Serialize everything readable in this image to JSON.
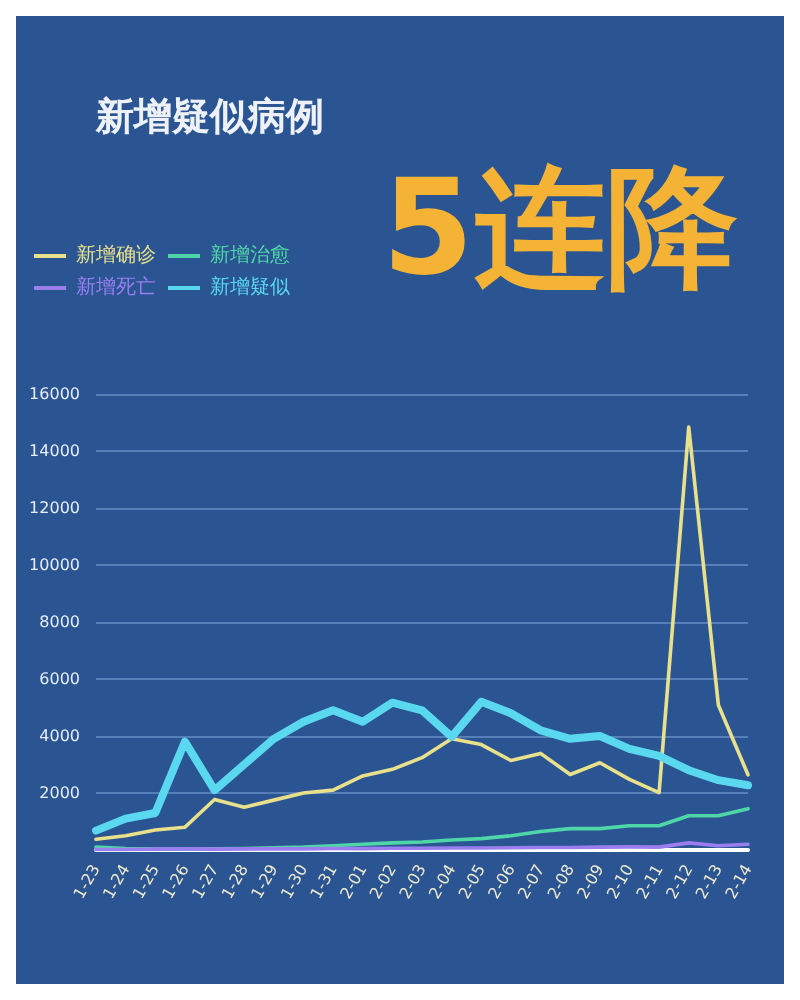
{
  "chart_data": {
    "type": "line",
    "title": "新增疑似病例",
    "subtitle": "5连降",
    "categories": [
      "1-23",
      "1-24",
      "1-25",
      "1-26",
      "1-27",
      "1-28",
      "1-29",
      "1-30",
      "1-31",
      "2-01",
      "2-02",
      "2-03",
      "2-04",
      "2-05",
      "2-06",
      "2-07",
      "2-08",
      "2-09",
      "2-10",
      "2-11",
      "2-12",
      "2-13",
      "2-14"
    ],
    "series": [
      {
        "name": "新增确诊",
        "color": "#e8e08a",
        "values": [
          380,
          500,
          700,
          800,
          1770,
          1500,
          1750,
          2000,
          2100,
          2600,
          2830,
          3240,
          3900,
          3700,
          3140,
          3390,
          2650,
          3060,
          2480,
          2015,
          14840,
          5090,
          2640
        ]
      },
      {
        "name": "新增治愈",
        "color": "#4fd6a8",
        "values": [
          100,
          50,
          30,
          30,
          40,
          50,
          80,
          100,
          150,
          200,
          250,
          280,
          350,
          400,
          500,
          650,
          750,
          750,
          850,
          850,
          1200,
          1200,
          1450
        ]
      },
      {
        "name": "新增死亡",
        "color": "#9a7ef0",
        "values": [
          20,
          20,
          30,
          40,
          30,
          40,
          40,
          40,
          50,
          50,
          60,
          60,
          70,
          70,
          80,
          90,
          90,
          100,
          110,
          100,
          250,
          150,
          200
        ]
      },
      {
        "name": "新增疑似",
        "color": "#5ad8f0",
        "values": [
          680,
          1100,
          1300,
          3800,
          2100,
          3000,
          3900,
          4500,
          4900,
          4500,
          5170,
          4900,
          3970,
          5200,
          4800,
          4200,
          3900,
          4000,
          3550,
          3300,
          2800,
          2450,
          2270
        ]
      }
    ],
    "ylim": [
      0,
      16000
    ],
    "yticks": [
      {
        "value": 0,
        "label": null
      },
      2000,
      4000,
      6000,
      8000,
      10000,
      12000,
      14000,
      16000
    ],
    "grid": "y",
    "legend": "top left",
    "marker": "none",
    "line_style": "solid"
  }
}
